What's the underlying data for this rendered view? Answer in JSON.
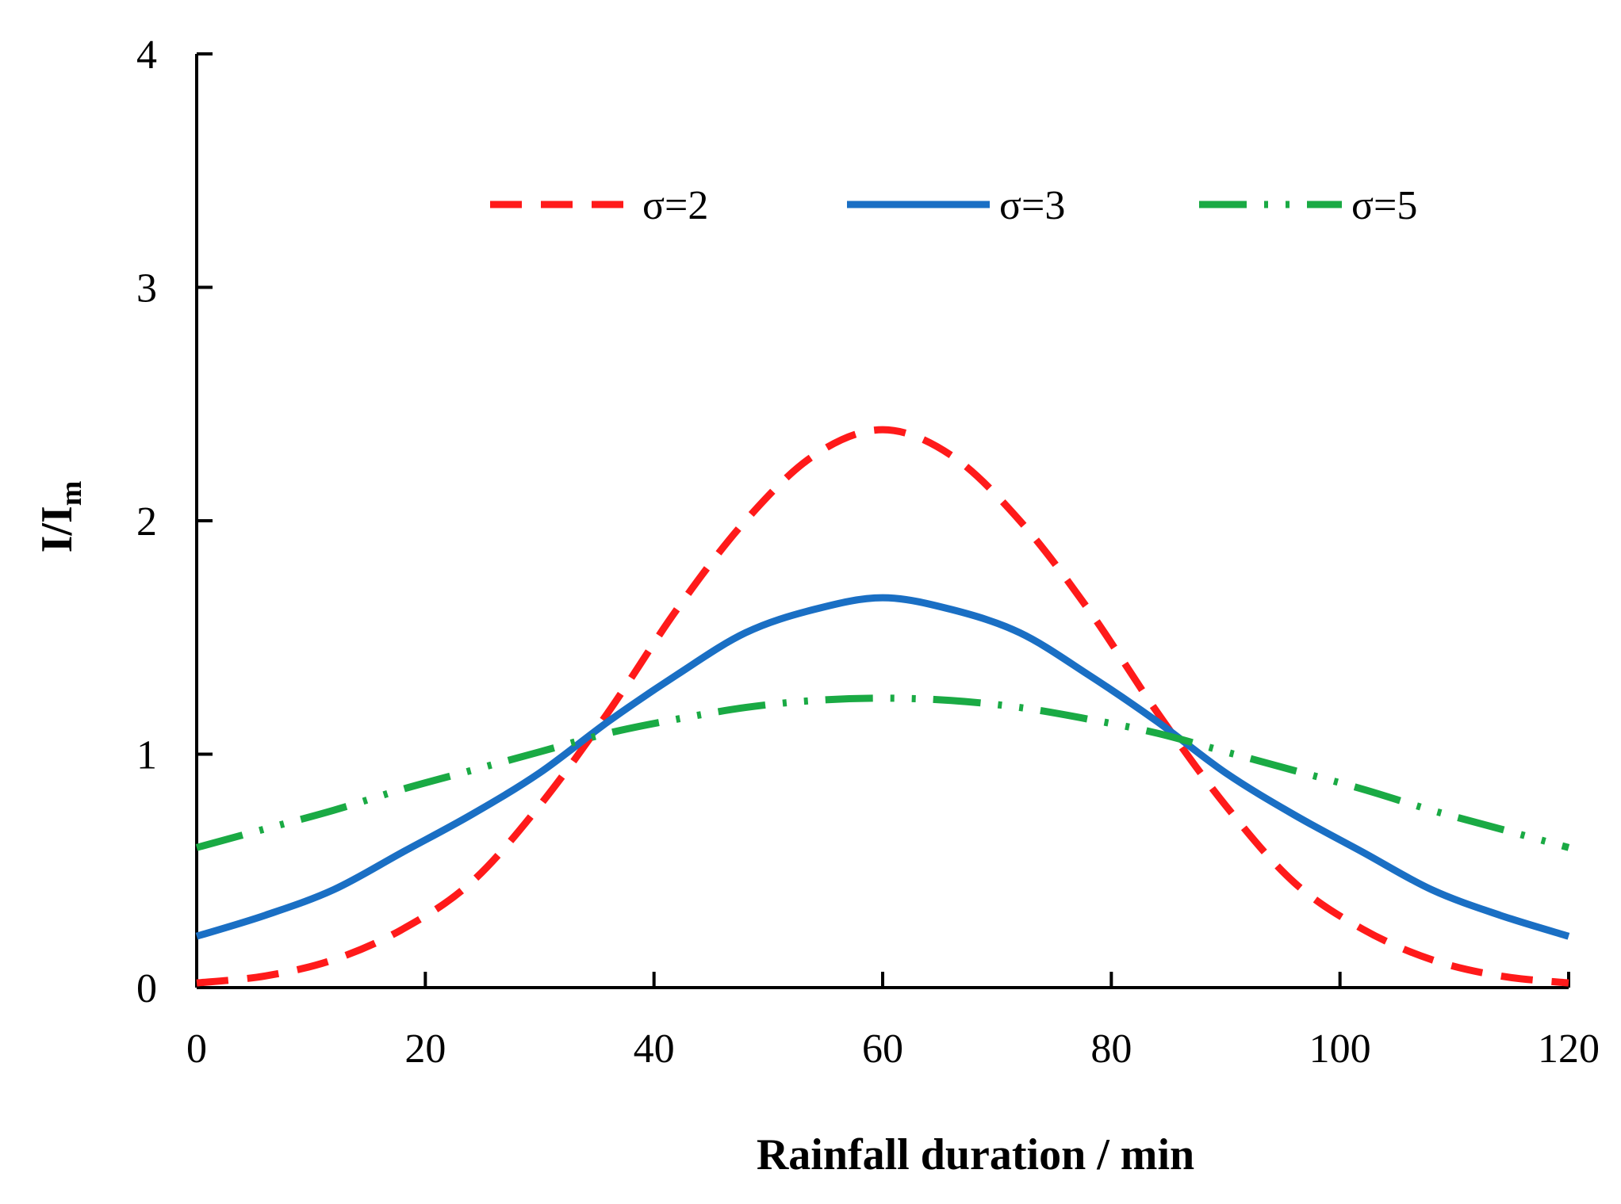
{
  "chart_data": {
    "type": "line",
    "title": "",
    "xlabel": "Rainfall duration / min",
    "ylabel": {
      "main": "I/I",
      "subscript": "m"
    },
    "xlim": [
      0,
      120
    ],
    "ylim": [
      0,
      4
    ],
    "xticks": [
      "0",
      "20",
      "40",
      "60",
      "80",
      "100",
      "120"
    ],
    "yticks": [
      "0",
      "1",
      "2",
      "3",
      "4"
    ],
    "grid": false,
    "legend_position": "top-center",
    "x": [
      0,
      6,
      12,
      18,
      24,
      30,
      36,
      42,
      48,
      54,
      60,
      66,
      72,
      78,
      84,
      90,
      96,
      102,
      108,
      114,
      120
    ],
    "series": [
      {
        "name": "σ=2",
        "color": "#ff1a1a",
        "style": "dashed",
        "values": [
          0.02,
          0.05,
          0.12,
          0.25,
          0.45,
          0.78,
          1.18,
          1.62,
          2.0,
          2.28,
          2.39,
          2.28,
          2.0,
          1.62,
          1.18,
          0.78,
          0.45,
          0.25,
          0.12,
          0.05,
          0.02
        ]
      },
      {
        "name": "σ=3",
        "color": "#1a6fc4",
        "style": "solid",
        "values": [
          0.22,
          0.31,
          0.42,
          0.58,
          0.74,
          0.92,
          1.14,
          1.34,
          1.52,
          1.62,
          1.67,
          1.62,
          1.52,
          1.34,
          1.14,
          0.92,
          0.74,
          0.58,
          0.42,
          0.31,
          0.22
        ]
      },
      {
        "name": "σ=5",
        "color": "#1aaa44",
        "style": "dash-dot-dot",
        "values": [
          0.6,
          0.68,
          0.76,
          0.85,
          0.93,
          1.01,
          1.09,
          1.15,
          1.2,
          1.23,
          1.24,
          1.23,
          1.2,
          1.15,
          1.09,
          1.01,
          0.93,
          0.85,
          0.76,
          0.68,
          0.6
        ]
      }
    ]
  }
}
